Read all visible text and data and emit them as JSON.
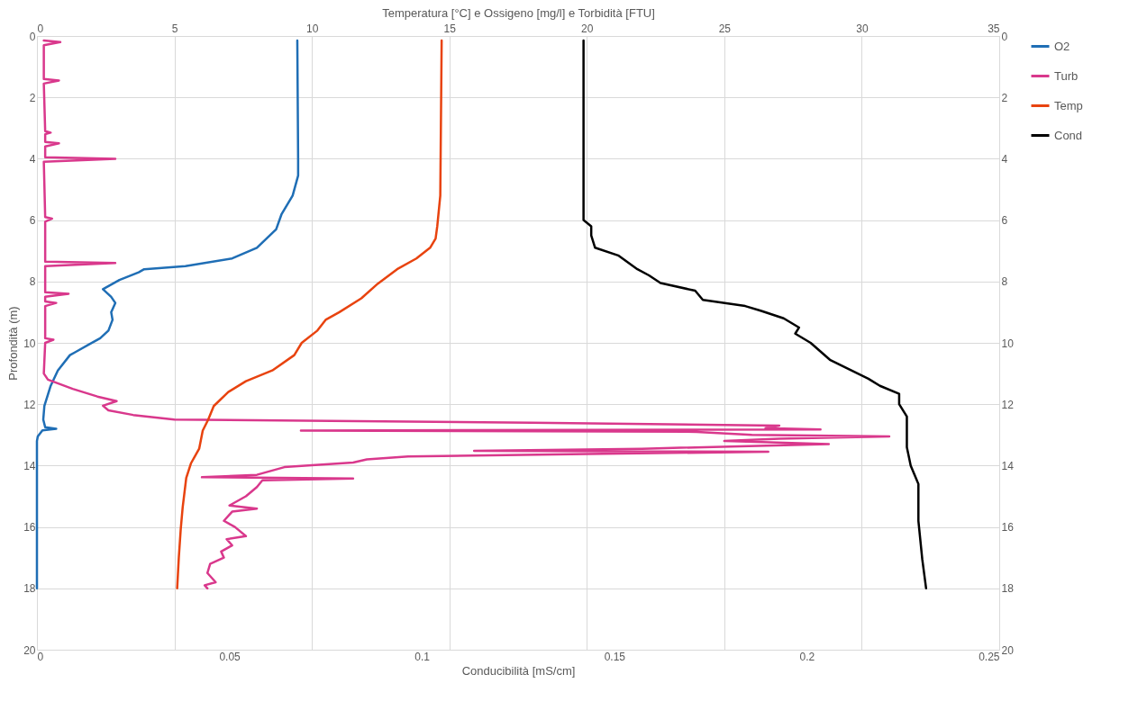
{
  "chart_data": {
    "type": "line",
    "orientation": "horizontal",
    "x2label": "Temperatura [°C] e Ossigeno [mg/l] e Torbidità [FTU]",
    "xlabel": "Conducibilità [mS/cm]",
    "ylabel": "Profondità (m)",
    "x2lim": [
      0,
      35
    ],
    "x2ticks": [
      0,
      5,
      10,
      15,
      20,
      25,
      30,
      35
    ],
    "xlim": [
      0,
      0.25
    ],
    "xticks": [
      0,
      0.05,
      0.1,
      0.15,
      0.2,
      0.25
    ],
    "ylim": [
      20,
      0
    ],
    "yticks": [
      0,
      2,
      4,
      6,
      8,
      10,
      12,
      14,
      16,
      18,
      20
    ],
    "y2lim": [
      20,
      0
    ],
    "y2ticks": [
      0,
      2,
      4,
      6,
      8,
      10,
      12,
      14,
      16,
      18,
      20
    ],
    "grid": true,
    "legend": "right",
    "series": [
      {
        "name": "O2",
        "color": "#1f6eb5",
        "axis": "x2",
        "x": [
          0.15,
          4.0,
          4.55,
          5.2,
          5.8,
          6.3,
          6.9,
          7.25,
          7.5,
          7.6,
          7.7,
          7.95,
          8.25,
          8.5,
          8.7,
          9.0,
          9.25,
          9.6,
          9.85,
          10.05,
          10.3,
          10.4,
          10.9,
          11.4,
          12.06,
          12.5,
          12.75,
          12.8,
          12.85,
          13.05,
          13.2,
          18.0
        ],
        "values": [
          9.47,
          9.5,
          9.5,
          9.3,
          8.9,
          8.7,
          8.0,
          7.1,
          5.4,
          3.9,
          3.7,
          3.0,
          2.4,
          2.7,
          2.85,
          2.7,
          2.75,
          2.6,
          2.3,
          1.9,
          1.4,
          1.2,
          0.76,
          0.5,
          0.27,
          0.23,
          0.3,
          0.7,
          0.2,
          0.03,
          0,
          0
        ]
      },
      {
        "name": "Turb",
        "color": "#d9388c",
        "axis": "x2",
        "x": [
          0.15,
          0.2,
          0.3,
          1.4,
          1.45,
          1.55,
          3.1,
          3.15,
          3.2,
          3.45,
          3.5,
          3.6,
          3.95,
          4.0,
          4.1,
          5.9,
          5.95,
          6.05,
          7.35,
          7.4,
          7.5,
          8.35,
          8.4,
          8.5,
          8.65,
          8.7,
          8.8,
          9.85,
          9.9,
          10.0,
          11.0,
          11.2,
          11.5,
          11.75,
          11.9,
          12.05,
          12.2,
          12.35,
          12.5,
          12.6,
          12.7,
          12.78,
          12.82,
          12.86,
          12.9,
          13.0,
          13.05,
          13.12,
          13.2,
          13.3,
          13.45,
          13.52,
          13.55,
          13.62,
          13.7,
          13.8,
          13.9,
          14.05,
          14.3,
          14.38,
          14.42,
          14.48,
          14.7,
          15.0,
          15.3,
          15.4,
          15.5,
          15.8,
          16.0,
          16.3,
          16.4,
          16.6,
          16.8,
          17.0,
          17.2,
          17.5,
          17.8,
          17.9,
          18.0
        ],
        "values": [
          0.25,
          0.85,
          0.25,
          0.25,
          0.8,
          0.25,
          0.3,
          0.5,
          0.3,
          0.3,
          0.8,
          0.3,
          0.3,
          2.85,
          0.25,
          0.3,
          0.55,
          0.3,
          0.3,
          2.85,
          0.3,
          0.3,
          1.15,
          0.3,
          0.3,
          0.7,
          0.3,
          0.3,
          0.6,
          0.3,
          0.25,
          0.4,
          1.3,
          2.2,
          2.9,
          2.4,
          2.6,
          3.5,
          5.0,
          18,
          27,
          26.5,
          28.5,
          9.6,
          24,
          26,
          31.0,
          27,
          25,
          28.8,
          22,
          15.9,
          26.6,
          20,
          13.5,
          12,
          11.5,
          9.0,
          8.0,
          6,
          11.5,
          8.2,
          8.0,
          7.6,
          7.0,
          8.0,
          7.1,
          6.8,
          7.2,
          7.6,
          6.9,
          7.1,
          6.7,
          6.8,
          6.3,
          6.2,
          6.5,
          6.1,
          6.2
        ]
      },
      {
        "name": "Temp",
        "color": "#e8430f",
        "axis": "x2",
        "x": [
          0.15,
          5.2,
          6.2,
          6.6,
          6.9,
          7.25,
          7.6,
          8.07,
          8.55,
          9.0,
          9.25,
          9.6,
          10.0,
          10.4,
          10.9,
          11.25,
          11.6,
          12.06,
          12.5,
          12.86,
          13.45,
          13.93,
          14.4,
          15.36,
          16.07,
          17.0,
          18.0
        ],
        "values": [
          14.72,
          14.67,
          14.56,
          14.5,
          14.3,
          13.8,
          13.1,
          12.4,
          11.8,
          11.0,
          10.5,
          10.2,
          9.63,
          9.36,
          8.56,
          7.6,
          6.96,
          6.43,
          6.23,
          6.03,
          5.9,
          5.6,
          5.43,
          5.3,
          5.23,
          5.16,
          5.1
        ]
      },
      {
        "name": "Cond",
        "color": "#000000",
        "x": [
          0.15,
          6.0,
          6.2,
          6.5,
          6.9,
          7.15,
          7.6,
          7.8,
          8.05,
          8.3,
          8.6,
          8.8,
          8.95,
          9.2,
          9.5,
          9.7,
          10.0,
          10.55,
          10.86,
          11.17,
          11.4,
          11.66,
          12.0,
          12.4,
          13.4,
          14.0,
          14.6,
          15.8,
          17.05,
          18.0
        ],
        "values": [
          0.142,
          0.142,
          0.144,
          0.144,
          0.145,
          0.151,
          0.156,
          0.159,
          0.162,
          0.171,
          0.173,
          0.184,
          0.188,
          0.194,
          0.198,
          0.197,
          0.201,
          0.206,
          0.211,
          0.216,
          0.219,
          0.224,
          0.224,
          0.226,
          0.226,
          0.227,
          0.229,
          0.229,
          0.23,
          0.231
        ]
      }
    ]
  }
}
